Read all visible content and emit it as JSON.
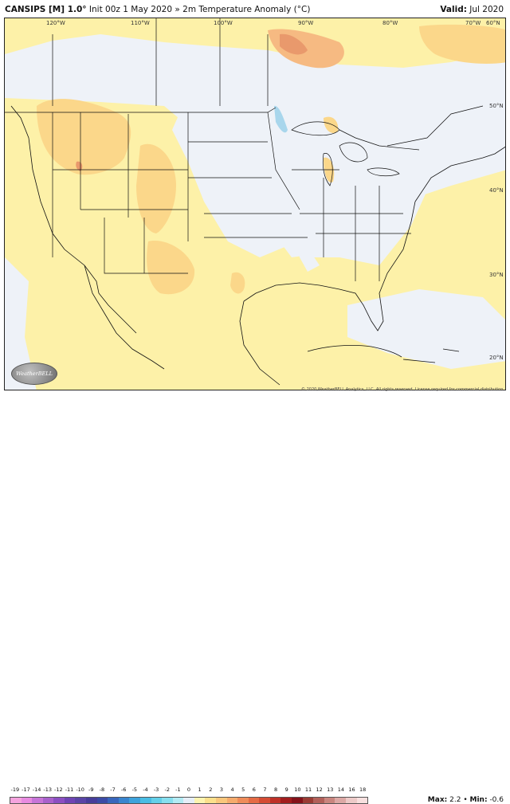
{
  "header": {
    "model": "CANSIPS [M] 1.0°",
    "init": "Init 00z 1 May 2020",
    "separator": "»",
    "variable": "2m Temperature Anomaly (°C)",
    "valid_label": "Valid:",
    "valid_value": "Jul 2020"
  },
  "map": {
    "longitude_labels": [
      "120°W",
      "110°W",
      "100°W",
      "90°W",
      "80°W",
      "70°W",
      "60°N"
    ],
    "latitude_labels": [
      "50°N",
      "40°N",
      "30°N",
      "20°N"
    ],
    "credit": "© 2020 WeatherBELL Analytics, LLC. All rights reserved. License required for commercial distribution.",
    "logo_text": "WeatherBELL",
    "fill_colors": {
      "neutral": "#eef2f8",
      "light_warm": "#fdf1a8",
      "warm": "#fbd78a",
      "warmer": "#f6ba82",
      "warmest": "#e9996c",
      "cool": "#a8d6ec",
      "water": "#ffffff"
    }
  },
  "legend": {
    "ticks": [
      "-19",
      "-17",
      "-14",
      "-13",
      "-12",
      "-11",
      "-10",
      "-9",
      "-8",
      "-7",
      "-6",
      "-5",
      "-4",
      "-3",
      "-2",
      "-1",
      "0",
      "1",
      "2",
      "3",
      "4",
      "5",
      "6",
      "7",
      "8",
      "9",
      "10",
      "11",
      "12",
      "13",
      "14",
      "16",
      "18"
    ],
    "colors": [
      "#f5a3de",
      "#e88ae0",
      "#c774d8",
      "#a961cc",
      "#8c4fc2",
      "#6f44b4",
      "#5a44a6",
      "#473d9a",
      "#3b4ba6",
      "#3866bc",
      "#3985cf",
      "#3da3dc",
      "#49bde4",
      "#63d0e9",
      "#86dfef",
      "#b3ebf4",
      "#e6eef8",
      "#fdf4b0",
      "#fbe08c",
      "#f9c77c",
      "#f5ab6d",
      "#ef8c5a",
      "#e56b45",
      "#d54c34",
      "#bf3128",
      "#a21d1e",
      "#84121a",
      "#9a3b34",
      "#b2605a",
      "#c9857f",
      "#dca8a5",
      "#edcac8",
      "#f8e0df"
    ],
    "max_label": "Max:",
    "max_value": "2.2",
    "bullet": "•",
    "min_label": "Min:",
    "min_value": "-0.6"
  }
}
